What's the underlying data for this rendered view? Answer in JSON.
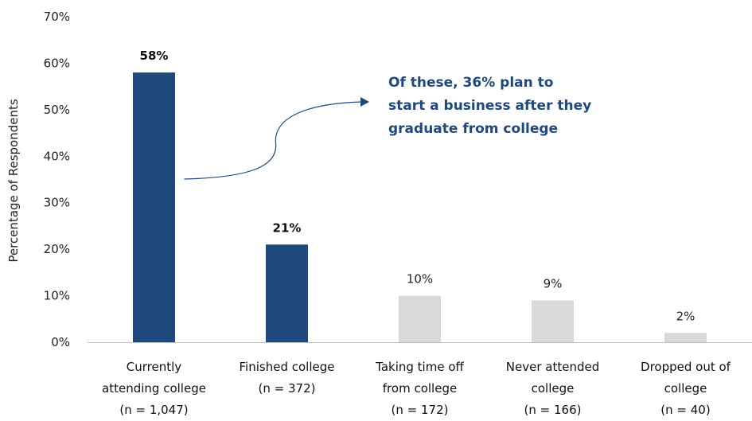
{
  "chart_data": {
    "type": "bar",
    "categories": [
      [
        "Currently",
        "attending college",
        "(n = 1,047)"
      ],
      [
        "Finished college",
        "(n = 372)"
      ],
      [
        "Taking time off",
        "from college",
        "(n = 172)"
      ],
      [
        "Never attended",
        "college",
        "(n = 166)"
      ],
      [
        "Dropped out of",
        "college",
        "(n = 40)"
      ]
    ],
    "values": [
      58,
      21,
      10,
      9,
      2
    ],
    "data_labels": [
      "58%",
      "21%",
      "10%",
      "9%",
      "2%"
    ],
    "highlighted": [
      true,
      true,
      false,
      false,
      false
    ],
    "title": "",
    "xlabel": "",
    "ylabel": "Percentage of Respondents",
    "ylim": [
      0,
      70
    ],
    "yticks": [
      0,
      10,
      20,
      30,
      40,
      50,
      60,
      70
    ],
    "ytick_labels": [
      "0%",
      "10%",
      "20%",
      "30%",
      "40%",
      "50%",
      "60%",
      "70%"
    ],
    "grid": false,
    "colors": {
      "highlight": "#1F497D",
      "other": "#D9D9D9",
      "annotation": "#1F497D"
    },
    "annotation": {
      "lines": [
        "Of these, 36% plan to",
        "start a business after they",
        "graduate from college"
      ],
      "refers_to": "Currently attending college"
    }
  }
}
